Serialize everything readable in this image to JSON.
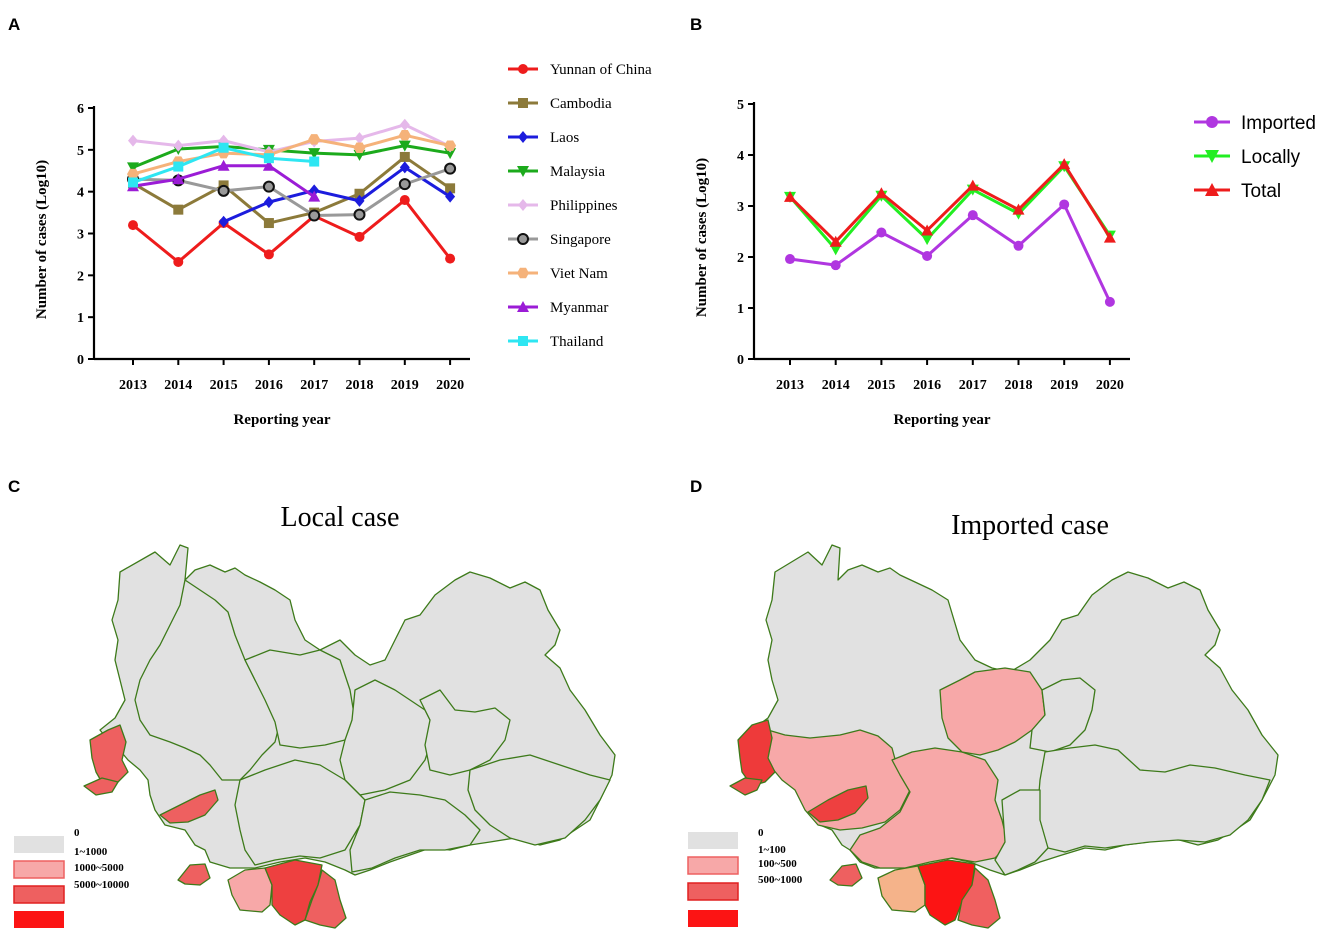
{
  "chart_data": [
    {
      "panel": "A",
      "type": "line",
      "categories": [
        "2013",
        "2014",
        "2015",
        "2016",
        "2017",
        "2018",
        "2019",
        "2020"
      ],
      "ylim": [
        0,
        6
      ],
      "yticks": [
        "0",
        "1",
        "2",
        "3",
        "4",
        "5",
        "6"
      ],
      "xlabel": "Reporting year",
      "ylabel": "Number of cases (Log10)",
      "series": [
        {
          "name": "Yunnan of China",
          "color": "#ee1c1c",
          "marker": "circle",
          "values": [
            3.2,
            2.32,
            3.25,
            2.5,
            3.42,
            2.92,
            3.8,
            2.4
          ]
        },
        {
          "name": "Cambodia",
          "color": "#8c7a3a",
          "marker": "square",
          "values": [
            4.2,
            3.57,
            4.15,
            3.25,
            3.5,
            3.95,
            4.83,
            4.08
          ]
        },
        {
          "name": "Laos",
          "color": "#1c1cdd",
          "marker": "diamond",
          "values": [
            null,
            null,
            3.28,
            3.75,
            4.03,
            3.78,
            4.58,
            3.88
          ]
        },
        {
          "name": "Malaysia",
          "color": "#1caa1c",
          "marker": "tri-down",
          "values": [
            4.58,
            5.02,
            5.08,
            5.0,
            4.92,
            4.88,
            5.1,
            4.92
          ]
        },
        {
          "name": "Philippines",
          "color": "#e5b8ea",
          "marker": "diamond",
          "values": [
            5.22,
            5.1,
            5.22,
            4.95,
            5.2,
            5.28,
            5.6,
            5.08
          ]
        },
        {
          "name": "Singapore",
          "color": "#999999",
          "marker": "ring",
          "values": [
            4.3,
            4.27,
            4.02,
            4.12,
            3.43,
            3.45,
            4.18,
            4.55
          ]
        },
        {
          "name": "Viet Nam",
          "color": "#f5b27a",
          "marker": "hexagon",
          "values": [
            4.42,
            4.72,
            4.92,
            4.88,
            5.25,
            5.05,
            5.35,
            5.1
          ]
        },
        {
          "name": "Myanmar",
          "color": "#9b1cd6",
          "marker": "tri-up",
          "values": [
            4.13,
            4.3,
            4.62,
            4.62,
            3.88,
            null,
            null,
            null
          ]
        },
        {
          "name": "Thailand",
          "color": "#2ee6f2",
          "marker": "square",
          "values": [
            4.22,
            4.6,
            5.05,
            4.8,
            4.72,
            null,
            null,
            null
          ]
        }
      ]
    },
    {
      "panel": "B",
      "type": "line",
      "categories": [
        "2013",
        "2014",
        "2015",
        "2016",
        "2017",
        "2018",
        "2019",
        "2020"
      ],
      "ylim": [
        0,
        5
      ],
      "yticks": [
        "0",
        "1",
        "2",
        "3",
        "4",
        "5"
      ],
      "xlabel": "Reporting year",
      "ylabel": "Number of cases (Log10)",
      "series": [
        {
          "name": "Imported",
          "color": "#b036e0",
          "marker": "circle",
          "values": [
            1.96,
            1.84,
            2.48,
            2.02,
            2.82,
            2.22,
            3.03,
            1.12
          ]
        },
        {
          "name": "Locally",
          "color": "#22ee22",
          "marker": "tri-down",
          "values": [
            3.18,
            2.15,
            3.2,
            2.35,
            3.32,
            2.85,
            3.78,
            2.42
          ]
        },
        {
          "name": "Total",
          "color": "#ee1c1c",
          "marker": "tri-up",
          "values": [
            3.18,
            2.3,
            3.25,
            2.52,
            3.4,
            2.93,
            3.82,
            2.38
          ]
        }
      ]
    }
  ],
  "panels": {
    "a": "A",
    "b": "B",
    "c": "C",
    "d": "D"
  },
  "maps": {
    "local": {
      "title": "Local case",
      "legend": [
        "0",
        "1~1000",
        "1000~5000",
        "5000~10000"
      ]
    },
    "imported": {
      "title": "Imported case",
      "legend": [
        "0",
        "1~100",
        "100~500",
        "500~1000"
      ]
    }
  },
  "colors": {
    "map_gray": "#e1e1e1",
    "map_light": "#f7a8a8",
    "map_mid": "#ee6060",
    "map_red": "#fc1414",
    "map_border": "#3d7a1a"
  }
}
